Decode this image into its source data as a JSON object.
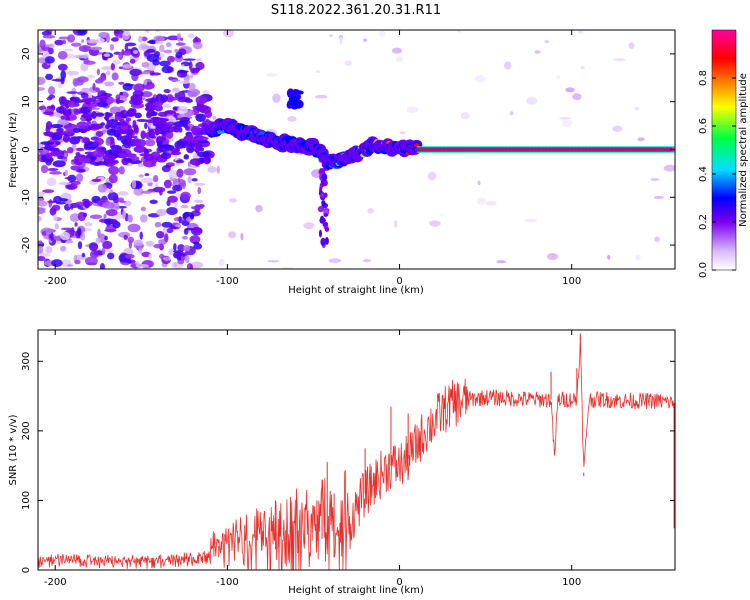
{
  "figure_title": "S118.2022.361.20.31.R11",
  "chart_data": [
    {
      "type": "heatmap",
      "title": "S118.2022.361.20.31.R11",
      "xlabel": "Height of straight line (km)",
      "ylabel": "Frequency (Hz)",
      "xlim": [
        -210,
        160
      ],
      "ylim": [
        -25,
        25
      ],
      "x_ticks": [
        -200,
        -100,
        0,
        100
      ],
      "y_ticks": [
        -20,
        -10,
        0,
        10,
        20
      ],
      "colorbar": {
        "label": "Normalized spectral amplitude",
        "range": [
          0,
          1
        ],
        "ticks": [
          "0.0",
          "0.2",
          "0.4",
          "0.6",
          "0.8"
        ],
        "colors": [
          "#ffffff",
          "#d8b8f8",
          "#7a00f0",
          "#0000ff",
          "#00e0ff",
          "#00ff40",
          "#ffff00",
          "#ff8000",
          "#ff0000",
          "#ff00a0"
        ]
      },
      "ridge": {
        "x": [
          -110,
          -100,
          -90,
          -80,
          -70,
          -60,
          -50,
          -45,
          -40,
          -35,
          -30,
          -25,
          -20,
          -15,
          -10,
          0,
          10,
          20,
          50,
          80,
          100,
          120,
          160
        ],
        "freq": [
          4,
          5,
          3.5,
          2.5,
          1.5,
          1,
          0.5,
          -1,
          -3,
          -2.5,
          -1.5,
          -1,
          0,
          1,
          0.5,
          0.5,
          0,
          0,
          0,
          0,
          0,
          0,
          0
        ],
        "amplitude": [
          0.35,
          0.4,
          0.35,
          0.35,
          0.32,
          0.3,
          0.28,
          0.3,
          0.35,
          0.45,
          0.5,
          0.55,
          0.65,
          0.75,
          0.8,
          0.85,
          0.9,
          0.9,
          0.9,
          0.9,
          0.9,
          0.9,
          0.9
        ]
      }
    },
    {
      "type": "line",
      "xlabel": "Height of straight line (km)",
      "ylabel": "SNR (10 * v/v)",
      "xlim": [
        -210,
        160
      ],
      "ylim": [
        0,
        345
      ],
      "x_ticks": [
        -200,
        -100,
        0,
        100
      ],
      "y_ticks": [
        0,
        100,
        200,
        300
      ],
      "series": [
        {
          "color": "#e8302a",
          "x": [
            -210,
            -200,
            -180,
            -160,
            -140,
            -130,
            -120,
            -110,
            -100,
            -90,
            -80,
            -70,
            -60,
            -50,
            -45,
            -40,
            -35,
            -30,
            -25,
            -20,
            -15,
            -10,
            -5,
            0,
            5,
            10,
            15,
            20,
            25,
            30,
            35,
            40,
            50,
            60,
            70,
            80,
            88,
            90,
            92,
            100,
            103,
            105,
            107,
            110,
            120,
            130,
            140,
            150,
            160
          ],
          "y": [
            10,
            12,
            10,
            9,
            10,
            11,
            14,
            16,
            20,
            25,
            28,
            30,
            35,
            40,
            45,
            20,
            15,
            55,
            90,
            110,
            125,
            140,
            150,
            150,
            160,
            180,
            200,
            215,
            228,
            238,
            242,
            245,
            248,
            247,
            246,
            245,
            245,
            160,
            245,
            245,
            245,
            330,
            140,
            245,
            245,
            243,
            243,
            243,
            240
          ],
          "spikes": [
            {
              "x": -125,
              "y": 25
            },
            {
              "x": -105,
              "y": 35
            },
            {
              "x": -80,
              "y": 70
            },
            {
              "x": -72,
              "y": 75
            },
            {
              "x": -55,
              "y": 90
            },
            {
              "x": -48,
              "y": 100
            },
            {
              "x": -45,
              "y": 130
            },
            {
              "x": -42,
              "y": 155
            },
            {
              "x": -38,
              "y": 110
            },
            {
              "x": -20,
              "y": 175
            },
            {
              "x": -5,
              "y": 235
            },
            {
              "x": 5,
              "y": 225
            },
            {
              "x": 88,
              "y": 285
            },
            {
              "x": 90,
              "y": 160
            },
            {
              "x": 103,
              "y": 290
            },
            {
              "x": 105,
              "y": 340
            },
            {
              "x": 107,
              "y": 135
            }
          ]
        }
      ]
    }
  ]
}
